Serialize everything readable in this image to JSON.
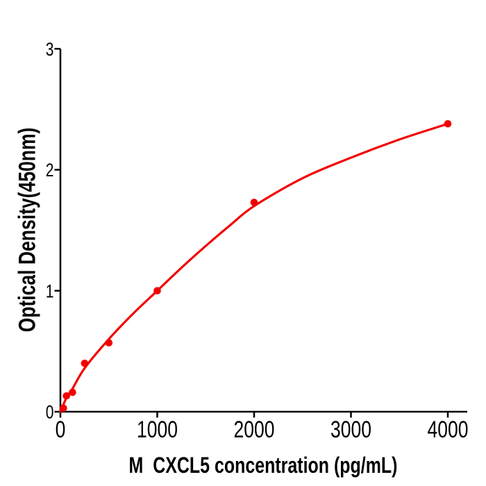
{
  "figure": {
    "background_color": "#ffffff",
    "kind": "elisa-standard-curve"
  },
  "chart_data": {
    "type": "scatter",
    "title": "",
    "xlabel": "M  CXCL5 concentration (pg/mL)",
    "ylabel": "Optical Density(450nm)",
    "x": [
      31.25,
      62.5,
      125,
      250,
      500,
      1000,
      2000,
      4000
    ],
    "y": [
      0.03,
      0.13,
      0.16,
      0.4,
      0.57,
      1.0,
      1.73,
      2.38
    ],
    "fit_curve": [
      [
        0,
        0.0
      ],
      [
        62.5,
        0.115
      ],
      [
        125,
        0.19
      ],
      [
        250,
        0.36
      ],
      [
        500,
        0.6
      ],
      [
        750,
        0.81
      ],
      [
        1000,
        1.0
      ],
      [
        1250,
        1.19
      ],
      [
        1500,
        1.37
      ],
      [
        1750,
        1.54
      ],
      [
        2000,
        1.7
      ],
      [
        2500,
        1.93
      ],
      [
        3000,
        2.1
      ],
      [
        3500,
        2.25
      ],
      [
        4000,
        2.38
      ]
    ],
    "xlim": [
      0,
      4200
    ],
    "ylim": [
      0,
      3
    ],
    "xticks": [
      0,
      1000,
      2000,
      3000,
      4000
    ],
    "xtick_labels": [
      "0",
      "1000",
      "2000",
      "3000",
      "4000"
    ],
    "yticks": [
      0,
      1,
      2,
      3
    ],
    "ytick_labels": [
      "0",
      "1",
      "2",
      "3"
    ],
    "grid": false,
    "legend": null,
    "marker_color": "#f20000",
    "line_color": "#f20000",
    "axis_color": "#000000"
  }
}
